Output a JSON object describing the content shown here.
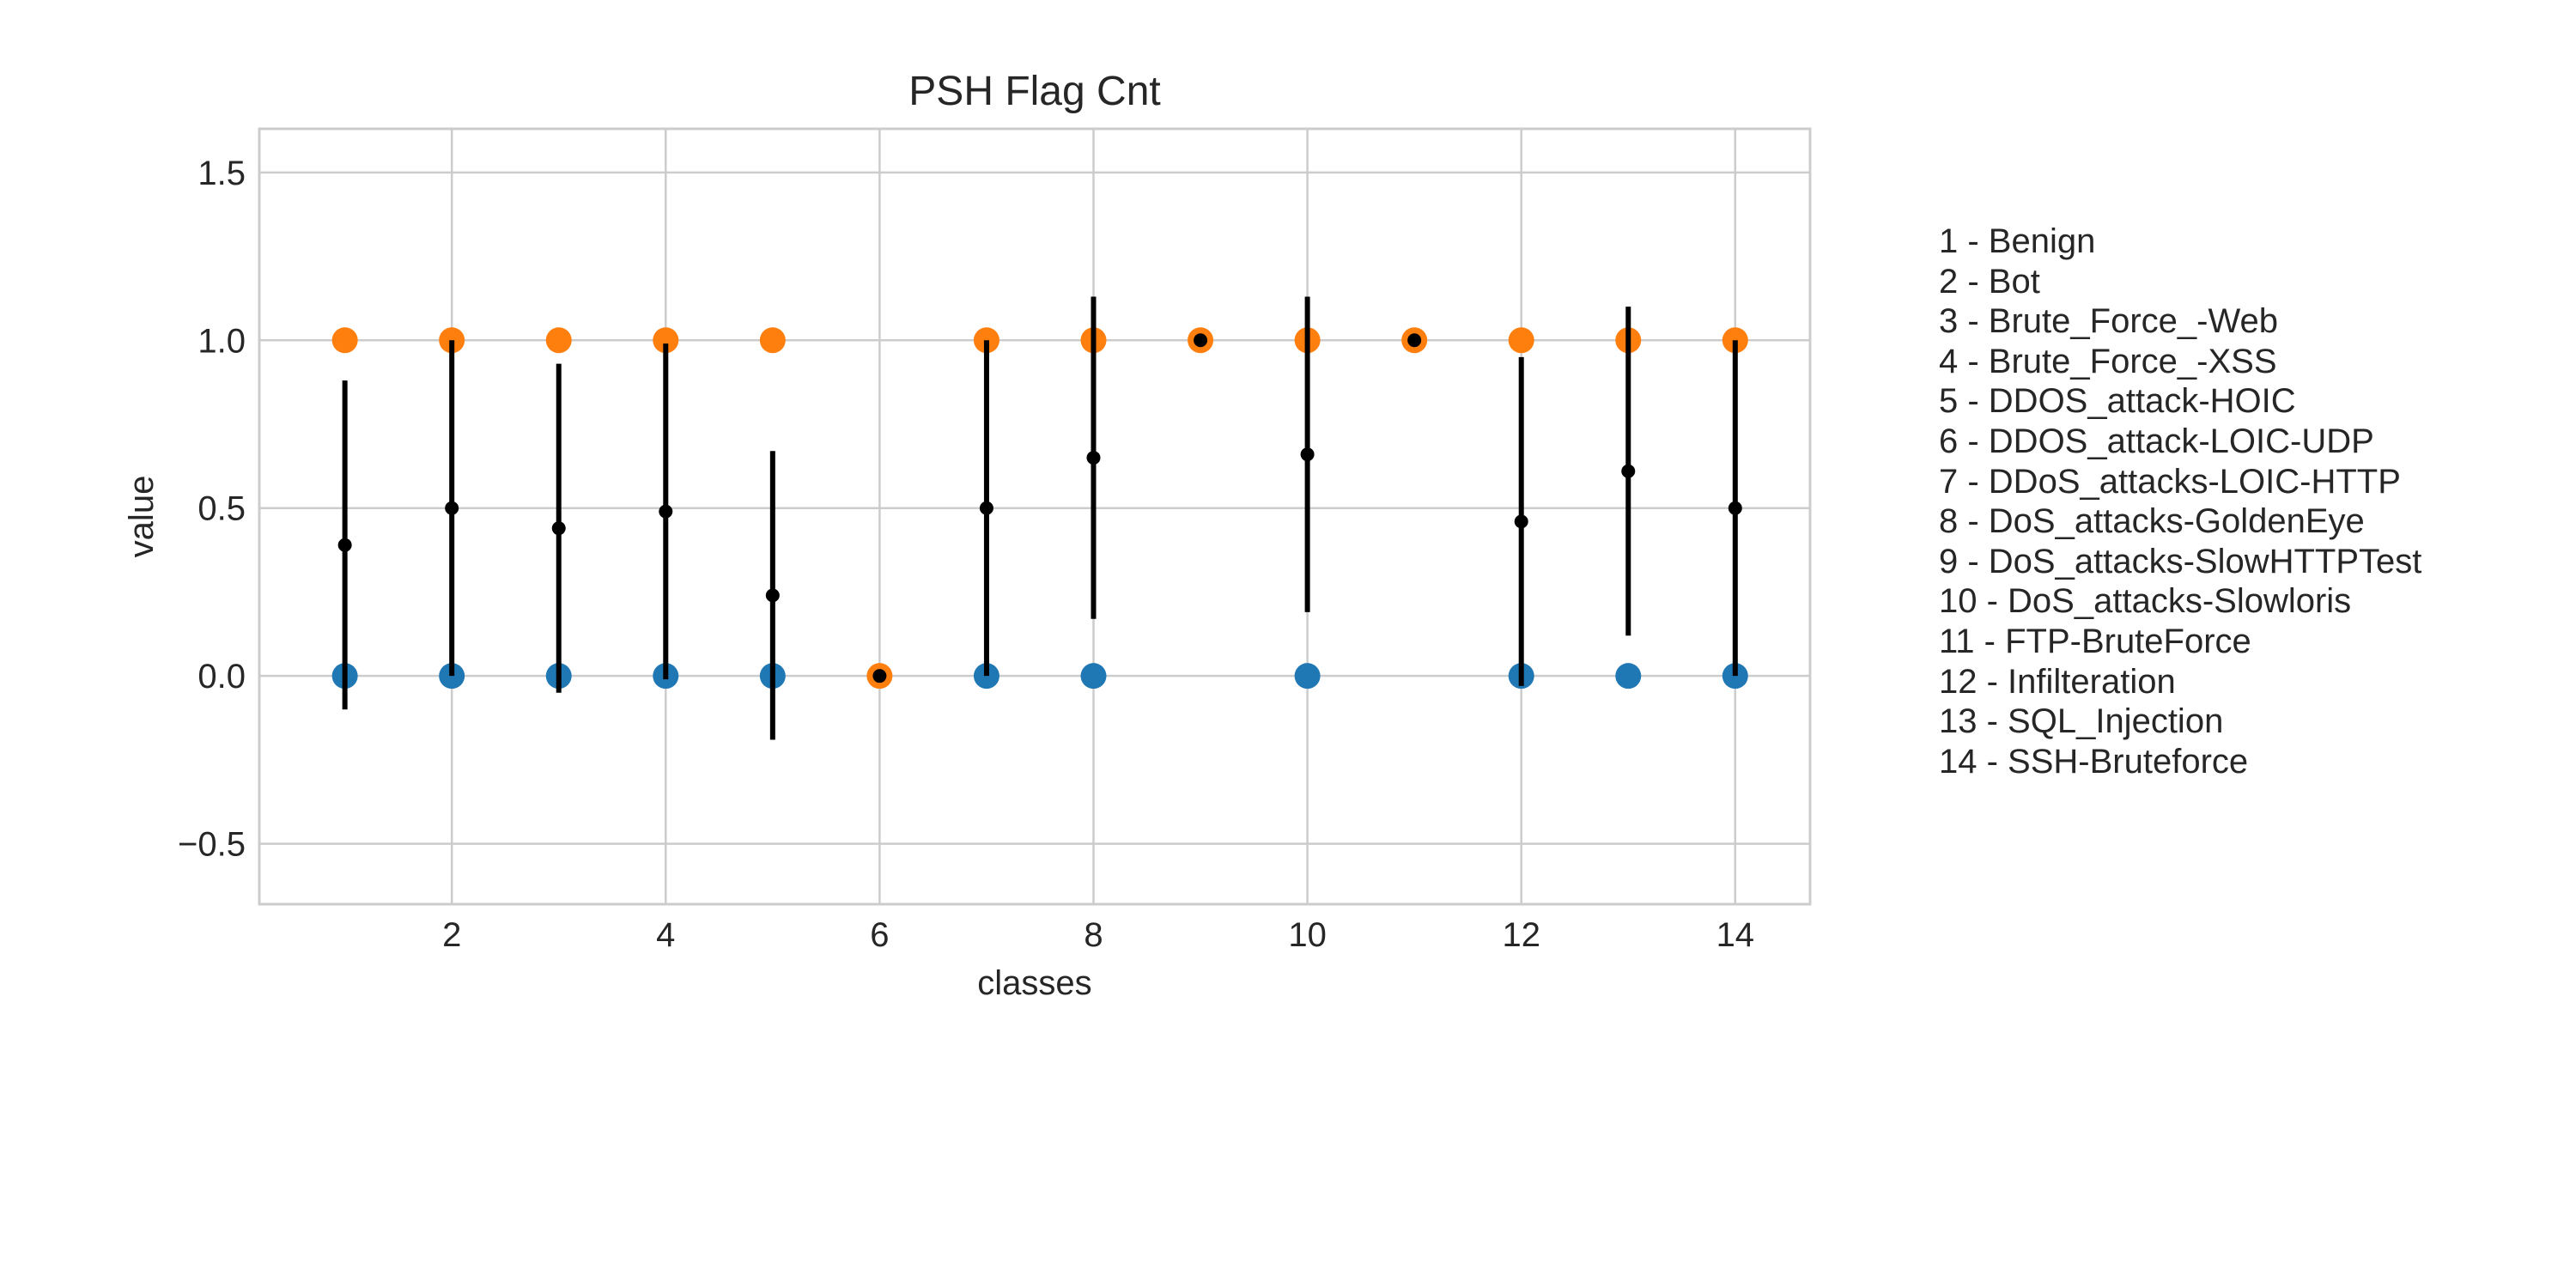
{
  "chart_data": {
    "type": "scatter",
    "title": "PSH Flag Cnt",
    "xlabel": "classes",
    "ylabel": "value",
    "xlim": [
      0.2,
      14.7
    ],
    "ylim": [
      -0.68,
      1.63
    ],
    "xticks": [
      2,
      4,
      6,
      8,
      10,
      12,
      14
    ],
    "yticks": [
      -0.5,
      0.0,
      0.5,
      1.0,
      1.5
    ],
    "xtick_labels": [
      "2",
      "4",
      "6",
      "8",
      "10",
      "12",
      "14"
    ],
    "ytick_labels": [
      "−0.5",
      "0.0",
      "0.5",
      "1.0",
      "1.5"
    ],
    "grid": true,
    "series": [
      {
        "role": "min",
        "color": "#1f77b4",
        "points": [
          [
            1,
            0
          ],
          [
            2,
            0
          ],
          [
            3,
            0
          ],
          [
            4,
            0
          ],
          [
            5,
            0
          ],
          [
            7,
            0
          ],
          [
            8,
            0
          ],
          [
            10,
            0
          ],
          [
            12,
            0
          ],
          [
            13,
            0
          ],
          [
            14,
            0
          ]
        ]
      },
      {
        "role": "max",
        "color": "#ff7f0e",
        "points": [
          [
            1,
            1
          ],
          [
            2,
            1
          ],
          [
            3,
            1
          ],
          [
            4,
            1
          ],
          [
            5,
            1
          ],
          [
            6,
            0
          ],
          [
            7,
            1
          ],
          [
            8,
            1
          ],
          [
            9,
            1
          ],
          [
            10,
            1
          ],
          [
            11,
            1
          ],
          [
            12,
            1
          ],
          [
            13,
            1
          ],
          [
            14,
            1
          ]
        ]
      },
      {
        "role": "mean_std",
        "color": "#000000",
        "points": [
          {
            "x": 1,
            "mean": 0.39,
            "std": 0.49
          },
          {
            "x": 2,
            "mean": 0.5,
            "std": 0.5
          },
          {
            "x": 3,
            "mean": 0.44,
            "std": 0.49
          },
          {
            "x": 4,
            "mean": 0.49,
            "std": 0.5
          },
          {
            "x": 5,
            "mean": 0.24,
            "std": 0.43
          },
          {
            "x": 6,
            "mean": 0.0,
            "std": 0.0
          },
          {
            "x": 7,
            "mean": 0.5,
            "std": 0.5
          },
          {
            "x": 8,
            "mean": 0.65,
            "std": 0.48
          },
          {
            "x": 9,
            "mean": 1.0,
            "std": 0.0
          },
          {
            "x": 10,
            "mean": 0.66,
            "std": 0.47
          },
          {
            "x": 11,
            "mean": 1.0,
            "std": 0.0
          },
          {
            "x": 12,
            "mean": 0.46,
            "std": 0.49
          },
          {
            "x": 13,
            "mean": 0.61,
            "std": 0.49
          },
          {
            "x": 14,
            "mean": 0.5,
            "std": 0.5
          }
        ]
      }
    ],
    "legend_position": "right",
    "legend": [
      "1 - Benign",
      "2 - Bot",
      "3 - Brute_Force_-Web",
      "4 - Brute_Force_-XSS",
      "5 - DDOS_attack-HOIC",
      "6 - DDOS_attack-LOIC-UDP",
      "7 - DDoS_attacks-LOIC-HTTP",
      "8 - DoS_attacks-GoldenEye",
      "9 - DoS_attacks-SlowHTTPTest",
      "10 - DoS_attacks-Slowloris",
      "11 - FTP-BruteForce",
      "12 - Infilteration",
      "13 - SQL_Injection",
      "14 - SSH-Bruteforce"
    ]
  }
}
